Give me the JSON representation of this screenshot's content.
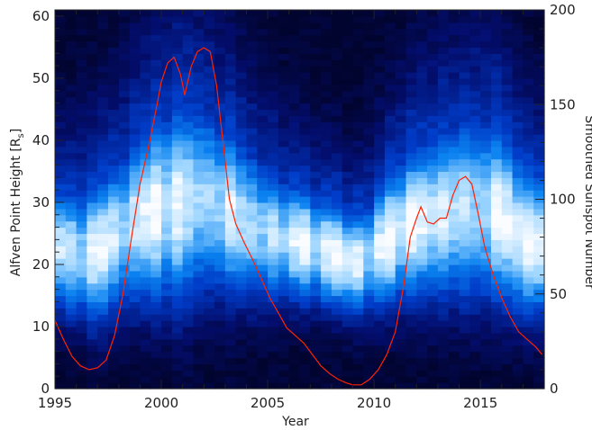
{
  "chart_data": {
    "type": "heatmap",
    "xlabel": "Year",
    "ylabel_left": "Alfven Point Height [R",
    "ylabel_left_sub": "s",
    "ylabel_left_close": "]",
    "ylabel_right": "Smoothed Sunspot Number",
    "xlim": [
      1995,
      2018
    ],
    "ylim_left": [
      0,
      61
    ],
    "ylim_right": [
      0,
      200
    ],
    "x_ticks": [
      1995,
      2000,
      2005,
      2010,
      2015
    ],
    "x_tick_labels": [
      "1995",
      "2000",
      "2005",
      "2010",
      "2015"
    ],
    "y_left_ticks": [
      0,
      10,
      20,
      30,
      40,
      50,
      60
    ],
    "y_left_tick_labels": [
      "0",
      "10",
      "20",
      "30",
      "40",
      "50",
      "60"
    ],
    "y_right_ticks": [
      0,
      50,
      100,
      150,
      200
    ],
    "y_right_tick_labels": [
      "0",
      "50",
      "100",
      "150",
      "200"
    ],
    "heatmap": {
      "description_colormap": "dark navy (low) to blue to white (high)",
      "x_start": 1995,
      "x_end": 2018,
      "n_columns": 46,
      "y_start": 0,
      "y_end": 61,
      "n_rows": 61,
      "peak_height_by_year": [
        [
          1995,
          23
        ],
        [
          1996,
          22
        ],
        [
          1997,
          22
        ],
        [
          1998,
          25
        ],
        [
          1999,
          28
        ],
        [
          2000,
          29
        ],
        [
          2001,
          30
        ],
        [
          2002,
          31
        ],
        [
          2003,
          29
        ],
        [
          2004,
          27
        ],
        [
          2005,
          25
        ],
        [
          2006,
          24
        ],
        [
          2007,
          23
        ],
        [
          2008,
          22
        ],
        [
          2009,
          20
        ],
        [
          2010,
          22
        ],
        [
          2011,
          25
        ],
        [
          2012,
          27
        ],
        [
          2013,
          28
        ],
        [
          2014,
          29
        ],
        [
          2015,
          29
        ],
        [
          2016,
          28
        ],
        [
          2017,
          24
        ],
        [
          2018,
          23
        ]
      ],
      "band_width_by_year": [
        [
          1995,
          7
        ],
        [
          1998,
          9
        ],
        [
          2001,
          12
        ],
        [
          2003,
          10
        ],
        [
          2006,
          7
        ],
        [
          2009,
          6
        ],
        [
          2012,
          9
        ],
        [
          2015,
          11
        ],
        [
          2018,
          8
        ]
      ]
    },
    "series": [
      {
        "name": "",
        "color": "#ff2200",
        "axis": "right",
        "x": [
          1995.0,
          1995.4,
          1995.8,
          1996.2,
          1996.6,
          1997.0,
          1997.4,
          1997.8,
          1998.2,
          1998.6,
          1999.0,
          1999.4,
          1999.8,
          2000.0,
          2000.3,
          2000.6,
          2000.9,
          2001.1,
          2001.4,
          2001.7,
          2002.0,
          2002.3,
          2002.6,
          2002.9,
          2003.2,
          2003.5,
          2003.9,
          2004.3,
          2004.7,
          2005.1,
          2005.5,
          2005.9,
          2006.3,
          2006.7,
          2007.1,
          2007.5,
          2007.9,
          2008.3,
          2008.7,
          2009.0,
          2009.4,
          2009.8,
          2010.2,
          2010.6,
          2011.0,
          2011.4,
          2011.7,
          2012.0,
          2012.2,
          2012.5,
          2012.8,
          2013.1,
          2013.4,
          2013.7,
          2014.0,
          2014.3,
          2014.6,
          2014.9,
          2015.2,
          2015.6,
          2016.0,
          2016.4,
          2016.8,
          2017.2,
          2017.6,
          2017.9
        ],
        "values": [
          36,
          26,
          17,
          12,
          10,
          11,
          15,
          28,
          50,
          80,
          108,
          128,
          150,
          162,
          172,
          175,
          166,
          155,
          170,
          178,
          180,
          178,
          160,
          130,
          100,
          87,
          77,
          68,
          58,
          48,
          40,
          32,
          28,
          24,
          18,
          12,
          8,
          5,
          3,
          2,
          2,
          5,
          10,
          18,
          30,
          55,
          80,
          90,
          96,
          88,
          87,
          90,
          90,
          102,
          110,
          112,
          108,
          92,
          75,
          60,
          48,
          38,
          30,
          26,
          22,
          18
        ]
      }
    ],
    "grid": false,
    "legend": "none"
  }
}
